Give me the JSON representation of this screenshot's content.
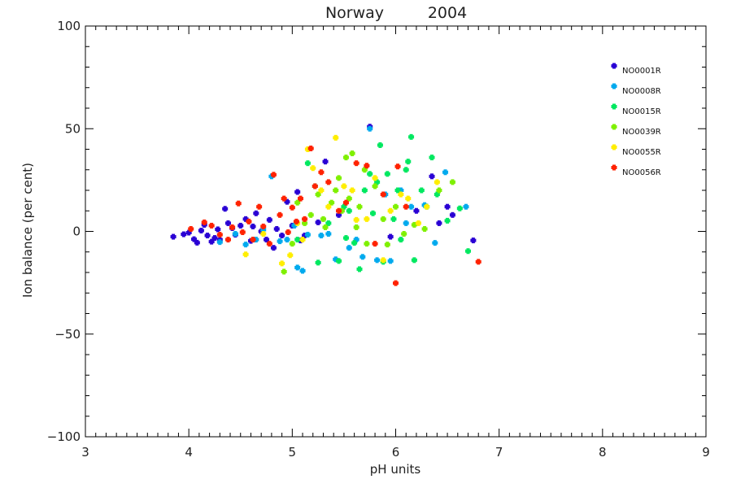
{
  "chart_data": {
    "type": "scatter",
    "title_left": "Norway",
    "title_right": "2004",
    "xlabel": "pH units",
    "ylabel": "Ion balance (per cent)",
    "xlim": [
      3,
      9
    ],
    "ylim": [
      -100,
      100
    ],
    "xticks": [
      3,
      4,
      5,
      6,
      7,
      8,
      9
    ],
    "yticks": [
      -100,
      -50,
      0,
      50,
      100
    ],
    "grid": false,
    "legend_position": "top-right",
    "series": [
      {
        "name": "NO0001R",
        "color": "#2a00d4",
        "points": [
          [
            3.85,
            -2.6
          ],
          [
            3.95,
            -1.4
          ],
          [
            4.0,
            -0.6
          ],
          [
            4.05,
            -3.8
          ],
          [
            4.08,
            -5.5
          ],
          [
            4.12,
            0.4
          ],
          [
            4.15,
            3.2
          ],
          [
            4.18,
            -2.0
          ],
          [
            4.22,
            -5.0
          ],
          [
            4.25,
            -3.2
          ],
          [
            4.28,
            1.0
          ],
          [
            4.3,
            -4.0
          ],
          [
            4.35,
            11.0
          ],
          [
            4.38,
            4.0
          ],
          [
            4.42,
            1.6
          ],
          [
            4.45,
            -1.6
          ],
          [
            4.5,
            2.8
          ],
          [
            4.55,
            6.0
          ],
          [
            4.6,
            -4.6
          ],
          [
            4.62,
            2.4
          ],
          [
            4.65,
            8.8
          ],
          [
            4.7,
            0.0
          ],
          [
            4.75,
            -4.0
          ],
          [
            4.78,
            5.6
          ],
          [
            4.82,
            -8.0
          ],
          [
            4.85,
            1.2
          ],
          [
            4.9,
            -2.0
          ],
          [
            4.95,
            14.4
          ],
          [
            5.0,
            2.8
          ],
          [
            5.05,
            19.2
          ],
          [
            5.08,
            -4.4
          ],
          [
            5.12,
            -2.0
          ],
          [
            5.25,
            4.4
          ],
          [
            5.32,
            34.0
          ],
          [
            5.45,
            8.0
          ],
          [
            5.75,
            51.0
          ],
          [
            5.95,
            -2.6
          ],
          [
            6.2,
            10.0
          ],
          [
            6.35,
            26.8
          ],
          [
            6.42,
            4.0
          ],
          [
            6.5,
            12.0
          ],
          [
            6.55,
            8.0
          ],
          [
            6.75,
            -4.4
          ]
        ]
      },
      {
        "name": "NO0008R",
        "color": "#00aaee",
        "points": [
          [
            4.3,
            -5.2
          ],
          [
            4.45,
            -1.2
          ],
          [
            4.55,
            -6.4
          ],
          [
            4.65,
            -4.0
          ],
          [
            4.72,
            0.8
          ],
          [
            4.8,
            26.8
          ],
          [
            4.88,
            -4.8
          ],
          [
            4.95,
            -4.0
          ],
          [
            5.02,
            2.8
          ],
          [
            5.05,
            -17.6
          ],
          [
            5.1,
            -19.2
          ],
          [
            5.15,
            -1.6
          ],
          [
            5.28,
            -2.0
          ],
          [
            5.35,
            -1.2
          ],
          [
            5.42,
            -13.6
          ],
          [
            5.55,
            -8.0
          ],
          [
            5.62,
            -4.0
          ],
          [
            5.68,
            -12.4
          ],
          [
            5.75,
            50.0
          ],
          [
            5.82,
            -14.0
          ],
          [
            5.9,
            18.0
          ],
          [
            5.95,
            -14.4
          ],
          [
            6.05,
            20.0
          ],
          [
            6.1,
            4.0
          ],
          [
            6.15,
            12.0
          ],
          [
            6.28,
            12.8
          ],
          [
            6.38,
            -5.6
          ],
          [
            6.48,
            28.8
          ],
          [
            6.68,
            12.0
          ]
        ]
      },
      {
        "name": "NO0015R",
        "color": "#00e860",
        "points": [
          [
            5.05,
            -4.0
          ],
          [
            5.15,
            33.2
          ],
          [
            5.22,
            22.0
          ],
          [
            5.25,
            -15.2
          ],
          [
            5.35,
            4.0
          ],
          [
            5.45,
            -14.4
          ],
          [
            5.5,
            12.0
          ],
          [
            5.52,
            -3.2
          ],
          [
            5.55,
            10.0
          ],
          [
            5.6,
            -5.6
          ],
          [
            5.65,
            -18.4
          ],
          [
            5.7,
            20.0
          ],
          [
            5.75,
            28.0
          ],
          [
            5.78,
            8.8
          ],
          [
            5.82,
            24.0
          ],
          [
            5.85,
            42.0
          ],
          [
            5.88,
            -14.8
          ],
          [
            5.92,
            28.0
          ],
          [
            5.98,
            6.0
          ],
          [
            6.02,
            20.0
          ],
          [
            6.05,
            -4.0
          ],
          [
            6.1,
            30.0
          ],
          [
            6.12,
            34.0
          ],
          [
            6.15,
            46.0
          ],
          [
            6.18,
            -14.0
          ],
          [
            6.25,
            20.0
          ],
          [
            6.3,
            12.0
          ],
          [
            6.35,
            36.0
          ],
          [
            6.4,
            18.0
          ],
          [
            6.5,
            5.2
          ],
          [
            6.62,
            11.2
          ],
          [
            6.7,
            -9.6
          ]
        ]
      },
      {
        "name": "NO0039R",
        "color": "#7ff000",
        "points": [
          [
            4.92,
            -19.6
          ],
          [
            5.0,
            -6.0
          ],
          [
            5.05,
            14.0
          ],
          [
            5.12,
            4.0
          ],
          [
            5.18,
            8.0
          ],
          [
            5.25,
            18.0
          ],
          [
            5.3,
            6.0
          ],
          [
            5.32,
            2.0
          ],
          [
            5.38,
            14.0
          ],
          [
            5.42,
            20.0
          ],
          [
            5.45,
            26.0
          ],
          [
            5.48,
            10.0
          ],
          [
            5.52,
            36.0
          ],
          [
            5.55,
            16.0
          ],
          [
            5.58,
            38.0
          ],
          [
            5.62,
            2.0
          ],
          [
            5.65,
            12.0
          ],
          [
            5.7,
            30.0
          ],
          [
            5.72,
            -6.0
          ],
          [
            5.8,
            22.0
          ],
          [
            5.88,
            6.0
          ],
          [
            5.92,
            -6.4
          ],
          [
            6.0,
            12.0
          ],
          [
            6.08,
            -1.2
          ],
          [
            6.18,
            3.2
          ],
          [
            6.28,
            1.2
          ],
          [
            6.42,
            20.0
          ],
          [
            6.55,
            24.0
          ]
        ]
      },
      {
        "name": "NO0055R",
        "color": "#ffee00",
        "points": [
          [
            4.55,
            -11.2
          ],
          [
            4.72,
            -1.2
          ],
          [
            4.9,
            -15.6
          ],
          [
            4.98,
            -11.6
          ],
          [
            5.05,
            4.0
          ],
          [
            5.1,
            -4.0
          ],
          [
            5.15,
            40.0
          ],
          [
            5.2,
            30.8
          ],
          [
            5.28,
            20.0
          ],
          [
            5.35,
            12.0
          ],
          [
            5.42,
            45.6
          ],
          [
            5.5,
            22.0
          ],
          [
            5.58,
            20.0
          ],
          [
            5.62,
            5.6
          ],
          [
            5.72,
            6.0
          ],
          [
            5.8,
            26.0
          ],
          [
            5.88,
            -14.0
          ],
          [
            5.95,
            10.0
          ],
          [
            6.05,
            18.0
          ],
          [
            6.12,
            16.0
          ],
          [
            6.22,
            4.0
          ],
          [
            6.3,
            12.0
          ],
          [
            6.4,
            24.0
          ]
        ]
      },
      {
        "name": "NO0056R",
        "color": "#ff2200",
        "points": [
          [
            4.02,
            1.2
          ],
          [
            4.15,
            4.4
          ],
          [
            4.22,
            2.8
          ],
          [
            4.3,
            -1.6
          ],
          [
            4.38,
            -4.0
          ],
          [
            4.42,
            2.0
          ],
          [
            4.48,
            13.6
          ],
          [
            4.52,
            -0.4
          ],
          [
            4.58,
            4.8
          ],
          [
            4.62,
            -4.0
          ],
          [
            4.68,
            12.0
          ],
          [
            4.72,
            2.4
          ],
          [
            4.78,
            -6.0
          ],
          [
            4.82,
            27.6
          ],
          [
            4.88,
            8.0
          ],
          [
            4.92,
            16.0
          ],
          [
            4.96,
            -0.4
          ],
          [
            5.0,
            11.6
          ],
          [
            5.04,
            4.8
          ],
          [
            5.08,
            16.0
          ],
          [
            5.12,
            6.0
          ],
          [
            5.18,
            40.4
          ],
          [
            5.22,
            22.0
          ],
          [
            5.28,
            28.8
          ],
          [
            5.35,
            24.0
          ],
          [
            5.45,
            10.0
          ],
          [
            5.52,
            14.0
          ],
          [
            5.62,
            33.2
          ],
          [
            5.72,
            32.0
          ],
          [
            5.8,
            -6.0
          ],
          [
            5.88,
            18.0
          ],
          [
            6.0,
            -25.2
          ],
          [
            6.02,
            31.6
          ],
          [
            6.1,
            12.0
          ],
          [
            6.8,
            -14.8
          ]
        ]
      }
    ]
  }
}
